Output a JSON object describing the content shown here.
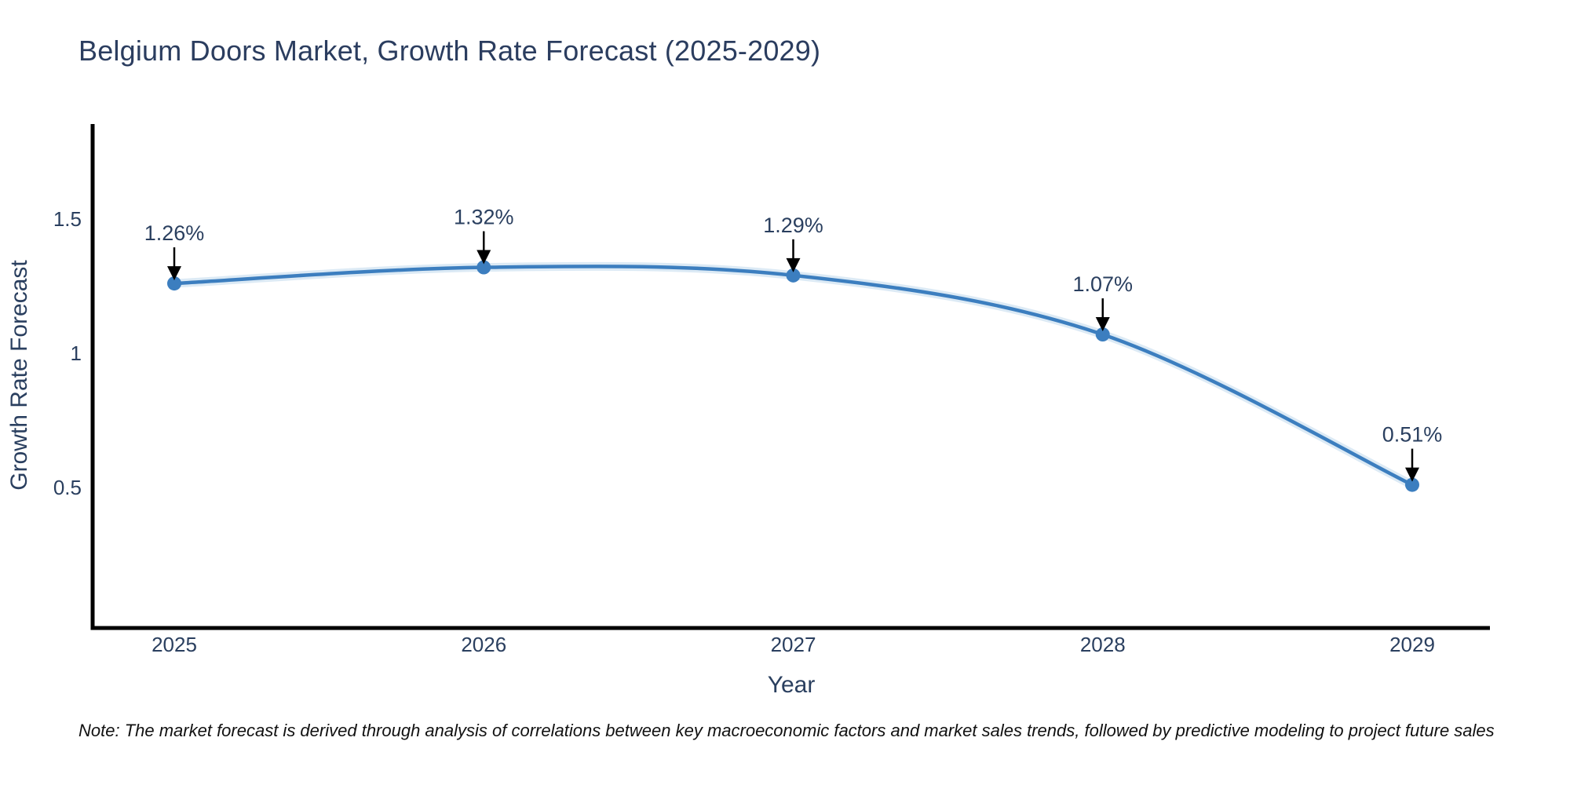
{
  "figure": {
    "note": "Note: The market forecast is derived through analysis of correlations between key macroeconomic factors and market sales trends, followed by predictive modeling to project future sales"
  },
  "chart_data": {
    "type": "line",
    "title": "Belgium Doors Market, Growth Rate Forecast (2025-2029)",
    "xlabel": "Year",
    "ylabel": "Growth Rate Forecast",
    "categories": [
      "2025",
      "2026",
      "2027",
      "2028",
      "2029"
    ],
    "values": [
      1.26,
      1.32,
      1.29,
      1.07,
      0.51
    ],
    "point_labels": [
      "1.26%",
      "1.32%",
      "1.29%",
      "1.07%",
      "0.51%"
    ],
    "unit": "%",
    "yticks": [
      0.5,
      1,
      1.5
    ],
    "ylim": [
      0,
      1.87
    ],
    "grid": false,
    "legend": false,
    "line_shape": "spline",
    "colors": {
      "line": "#3c7ebf",
      "marker": "#3c7ebf",
      "halo": "#b9d5ec",
      "axis": "#000000",
      "text": "#2a3f5f",
      "annotation_arrow": "#000000",
      "note_text": "#111111",
      "background": "#ffffff"
    }
  }
}
